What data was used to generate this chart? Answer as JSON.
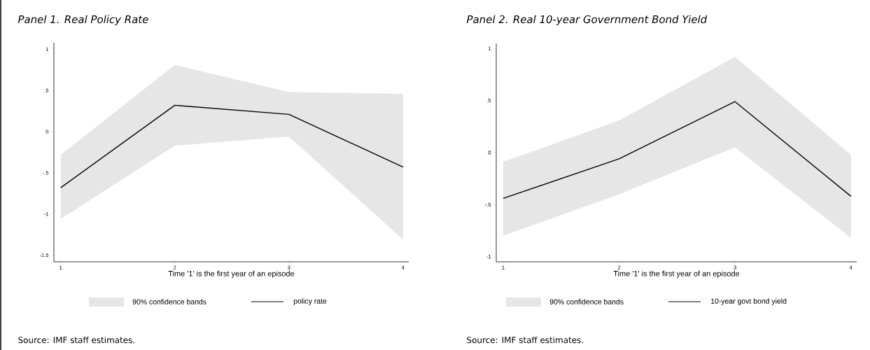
{
  "chart_data": [
    {
      "type": "line",
      "title": "*Panel 1. Real Policy Rate*",
      "xlabel": "Time '1' is the first year of an episode",
      "x": [
        1,
        2,
        3,
        4
      ],
      "xlim": [
        0.94,
        4.05
      ],
      "xticks": [
        1,
        2,
        3,
        4
      ],
      "ylim": [
        -1.58,
        1.08
      ],
      "yticks": [
        {
          "value": -1.5,
          "label": "-1.5"
        },
        {
          "value": -1,
          "label": "-1"
        },
        {
          "value": -0.5,
          "label": "-.5"
        },
        {
          "value": 0,
          "label": "0"
        },
        {
          "value": 0.5,
          "label": ".5"
        },
        {
          "value": 1,
          "label": "1"
        }
      ],
      "grid": false,
      "legend": "bottom",
      "legend_title": "90% confidence bands",
      "annotations": [
        "Source: IMF staff estimates."
      ],
      "series": [
        {
          "name": "policy rate",
          "color": "#000000",
          "values": [
            -0.68,
            0.32,
            0.21,
            -0.43
          ],
          "lower": [
            -1.06,
            -0.17,
            -0.06,
            -1.31
          ],
          "upper": [
            -0.28,
            0.81,
            0.48,
            0.46
          ]
        }
      ]
    },
    {
      "type": "line",
      "title": "*Panel 2. Real 10-year Government Bond Yield*",
      "xlabel": "Time '1' is the first year of an episode",
      "x": [
        1,
        2,
        3,
        4
      ],
      "xlim": [
        0.94,
        4.05
      ],
      "xticks": [
        1,
        2,
        3,
        4
      ],
      "ylim": [
        -1.05,
        1.05
      ],
      "yticks": [
        {
          "value": -1,
          "label": "-1"
        },
        {
          "value": -0.5,
          "label": "-.5"
        },
        {
          "value": 0,
          "label": "0"
        },
        {
          "value": 0.5,
          "label": ".5"
        },
        {
          "value": 1,
          "label": "1"
        }
      ],
      "grid": false,
      "legend": "bottom",
      "legend_title": "90% confidence bands",
      "annotations": [
        "Source: IMF staff estimates."
      ],
      "series": [
        {
          "name": "10-year govt bond yield",
          "color": "#000000",
          "values": [
            -0.44,
            -0.06,
            0.49,
            -0.42
          ],
          "lower": [
            -0.8,
            -0.4,
            0.05,
            -0.82
          ],
          "upper": [
            -0.09,
            0.31,
            0.92,
            -0.02
          ]
        }
      ]
    }
  ]
}
